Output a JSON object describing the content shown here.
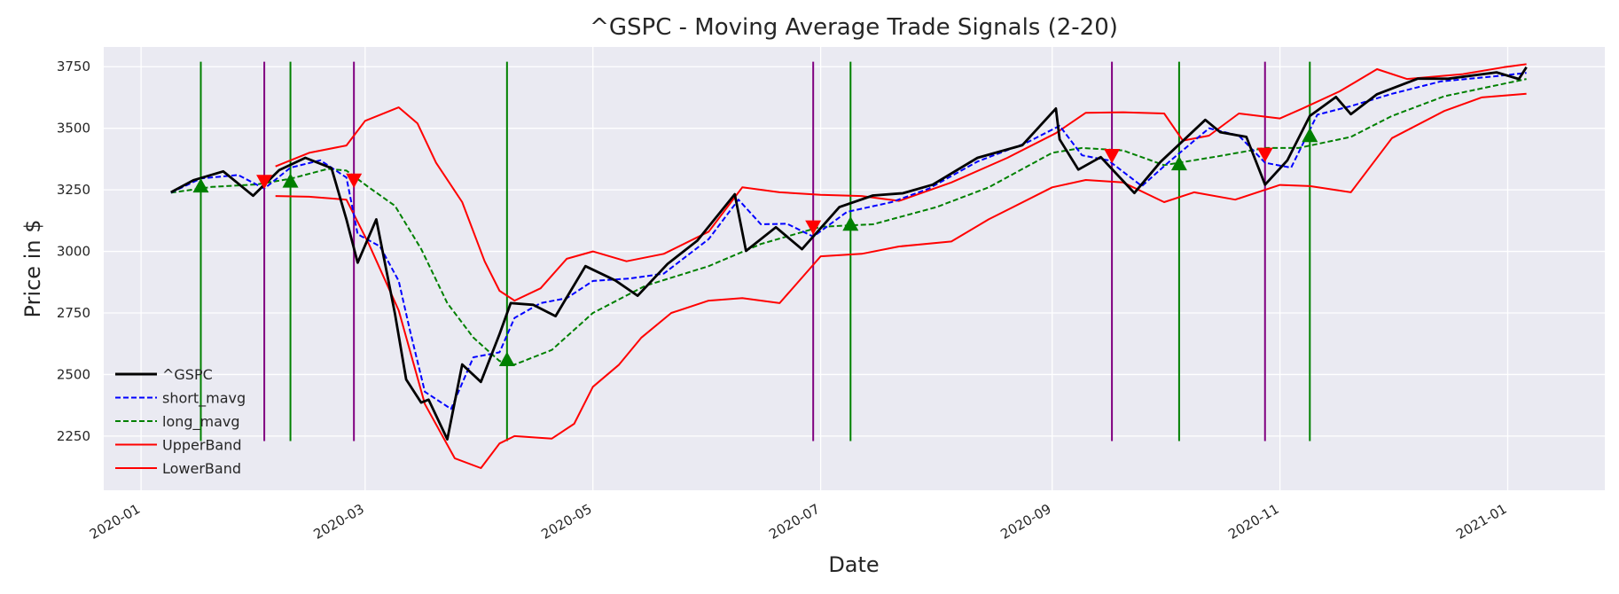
{
  "chart_data": {
    "type": "line",
    "title": "^GSPC - Moving Average Trade Signals (2-20)",
    "xlabel": "Date",
    "ylabel": "Price in $",
    "xlim": [
      "2019-12-22",
      "2021-01-27"
    ],
    "ylim": [
      2030,
      3830
    ],
    "x_ticks": [
      "2020-01-01",
      "2020-03-01",
      "2020-05-01",
      "2020-07-01",
      "2020-09-01",
      "2020-11-01",
      "2021-01-01"
    ],
    "x_tick_labels": [
      "2020-01",
      "2020-03",
      "2020-05",
      "2020-07",
      "2020-09",
      "2020-11",
      "2021-01"
    ],
    "y_ticks": [
      2250,
      2500,
      2750,
      3000,
      3250,
      3500,
      3750
    ],
    "y_tick_labels": [
      "2250",
      "2500",
      "2750",
      "3000",
      "3250",
      "3500",
      "3750"
    ],
    "grid": true,
    "legend_position": "lower-left",
    "series": [
      {
        "name": "^GSPC",
        "color": "#000000",
        "style": "solid",
        "points": [
          [
            "2020-01-09",
            3240
          ],
          [
            "2020-01-15",
            3289
          ],
          [
            "2020-01-23",
            3325
          ],
          [
            "2020-01-31",
            3226
          ],
          [
            "2020-02-07",
            3330
          ],
          [
            "2020-02-14",
            3380
          ],
          [
            "2020-02-21",
            3338
          ],
          [
            "2020-02-25",
            3130
          ],
          [
            "2020-02-28",
            2954
          ],
          [
            "2020-03-04",
            3130
          ],
          [
            "2020-03-09",
            2746
          ],
          [
            "2020-03-12",
            2480
          ],
          [
            "2020-03-16",
            2386
          ],
          [
            "2020-03-18",
            2398
          ],
          [
            "2020-03-23",
            2237
          ],
          [
            "2020-03-27",
            2541
          ],
          [
            "2020-04-01",
            2470
          ],
          [
            "2020-04-06",
            2664
          ],
          [
            "2020-04-09",
            2790
          ],
          [
            "2020-04-15",
            2783
          ],
          [
            "2020-04-21",
            2737
          ],
          [
            "2020-04-29",
            2940
          ],
          [
            "2020-05-07",
            2882
          ],
          [
            "2020-05-13",
            2820
          ],
          [
            "2020-05-21",
            2949
          ],
          [
            "2020-05-29",
            3044
          ],
          [
            "2020-06-08",
            3232
          ],
          [
            "2020-06-11",
            3002
          ],
          [
            "2020-06-19",
            3098
          ],
          [
            "2020-06-26",
            3009
          ],
          [
            "2020-07-06",
            3180
          ],
          [
            "2020-07-15",
            3227
          ],
          [
            "2020-07-23",
            3236
          ],
          [
            "2020-07-31",
            3271
          ],
          [
            "2020-08-12",
            3380
          ],
          [
            "2020-08-24",
            3431
          ],
          [
            "2020-09-02",
            3580
          ],
          [
            "2020-09-03",
            3455
          ],
          [
            "2020-09-08",
            3332
          ],
          [
            "2020-09-14",
            3383
          ],
          [
            "2020-09-23",
            3237
          ],
          [
            "2020-09-30",
            3363
          ],
          [
            "2020-10-12",
            3534
          ],
          [
            "2020-10-16",
            3484
          ],
          [
            "2020-10-23",
            3465
          ],
          [
            "2020-10-28",
            3271
          ],
          [
            "2020-11-03",
            3370
          ],
          [
            "2020-11-09",
            3550
          ],
          [
            "2020-11-16",
            3627
          ],
          [
            "2020-11-20",
            3557
          ],
          [
            "2020-11-27",
            3638
          ],
          [
            "2020-12-08",
            3702
          ],
          [
            "2020-12-16",
            3701
          ],
          [
            "2020-12-29",
            3727
          ],
          [
            "2021-01-04",
            3700
          ],
          [
            "2021-01-06",
            3748
          ]
        ]
      },
      {
        "name": "short_mavg",
        "color": "#0000ff",
        "style": "dashed",
        "points": [
          [
            "2020-01-09",
            3238
          ],
          [
            "2020-01-17",
            3296
          ],
          [
            "2020-01-27",
            3310
          ],
          [
            "2020-02-03",
            3255
          ],
          [
            "2020-02-10",
            3340
          ],
          [
            "2020-02-18",
            3370
          ],
          [
            "2020-02-25",
            3300
          ],
          [
            "2020-02-28",
            3070
          ],
          [
            "2020-03-05",
            3020
          ],
          [
            "2020-03-10",
            2880
          ],
          [
            "2020-03-13",
            2680
          ],
          [
            "2020-03-17",
            2430
          ],
          [
            "2020-03-24",
            2360
          ],
          [
            "2020-03-30",
            2570
          ],
          [
            "2020-04-06",
            2590
          ],
          [
            "2020-04-10",
            2730
          ],
          [
            "2020-04-17",
            2790
          ],
          [
            "2020-04-24",
            2810
          ],
          [
            "2020-05-01",
            2880
          ],
          [
            "2020-05-11",
            2890
          ],
          [
            "2020-05-20",
            2910
          ],
          [
            "2020-06-01",
            3050
          ],
          [
            "2020-06-09",
            3210
          ],
          [
            "2020-06-15",
            3110
          ],
          [
            "2020-06-22",
            3112
          ],
          [
            "2020-06-29",
            3060
          ],
          [
            "2020-07-08",
            3160
          ],
          [
            "2020-07-20",
            3200
          ],
          [
            "2020-07-30",
            3255
          ],
          [
            "2020-08-12",
            3365
          ],
          [
            "2020-08-25",
            3440
          ],
          [
            "2020-09-03",
            3510
          ],
          [
            "2020-09-09",
            3390
          ],
          [
            "2020-09-16",
            3370
          ],
          [
            "2020-09-25",
            3265
          ],
          [
            "2020-10-02",
            3360
          ],
          [
            "2020-10-13",
            3500
          ],
          [
            "2020-10-21",
            3470
          ],
          [
            "2020-10-28",
            3360
          ],
          [
            "2020-11-04",
            3340
          ],
          [
            "2020-11-11",
            3555
          ],
          [
            "2020-11-20",
            3590
          ],
          [
            "2020-12-01",
            3640
          ],
          [
            "2020-12-14",
            3690
          ],
          [
            "2020-12-28",
            3710
          ],
          [
            "2021-01-06",
            3725
          ]
        ]
      },
      {
        "name": "long_mavg",
        "color": "#008000",
        "style": "dashed",
        "points": [
          [
            "2020-01-09",
            3238
          ],
          [
            "2020-01-20",
            3262
          ],
          [
            "2020-02-01",
            3272
          ],
          [
            "2020-02-10",
            3295
          ],
          [
            "2020-02-20",
            3335
          ],
          [
            "2020-02-25",
            3328
          ],
          [
            "2020-03-02",
            3260
          ],
          [
            "2020-03-09",
            3185
          ],
          [
            "2020-03-16",
            3010
          ],
          [
            "2020-03-23",
            2790
          ],
          [
            "2020-03-30",
            2650
          ],
          [
            "2020-04-06",
            2555
          ],
          [
            "2020-04-10",
            2540
          ],
          [
            "2020-04-20",
            2600
          ],
          [
            "2020-05-01",
            2750
          ],
          [
            "2020-05-15",
            2860
          ],
          [
            "2020-06-01",
            2940
          ],
          [
            "2020-06-15",
            3030
          ],
          [
            "2020-07-01",
            3100
          ],
          [
            "2020-07-15",
            3110
          ],
          [
            "2020-08-01",
            3180
          ],
          [
            "2020-08-15",
            3260
          ],
          [
            "2020-09-01",
            3400
          ],
          [
            "2020-09-09",
            3420
          ],
          [
            "2020-09-20",
            3410
          ],
          [
            "2020-10-01",
            3350
          ],
          [
            "2020-10-15",
            3385
          ],
          [
            "2020-10-28",
            3420
          ],
          [
            "2020-11-06",
            3420
          ],
          [
            "2020-11-20",
            3465
          ],
          [
            "2020-12-01",
            3550
          ],
          [
            "2020-12-15",
            3630
          ],
          [
            "2021-01-06",
            3700
          ]
        ]
      },
      {
        "name": "UpperBand",
        "color": "#ff0000",
        "style": "solid",
        "points": [
          [
            "2020-02-06",
            3345
          ],
          [
            "2020-02-15",
            3400
          ],
          [
            "2020-02-25",
            3430
          ],
          [
            "2020-03-01",
            3530
          ],
          [
            "2020-03-10",
            3585
          ],
          [
            "2020-03-15",
            3520
          ],
          [
            "2020-03-20",
            3360
          ],
          [
            "2020-03-27",
            3200
          ],
          [
            "2020-04-02",
            2960
          ],
          [
            "2020-04-06",
            2840
          ],
          [
            "2020-04-10",
            2800
          ],
          [
            "2020-04-17",
            2850
          ],
          [
            "2020-04-24",
            2970
          ],
          [
            "2020-05-01",
            3000
          ],
          [
            "2020-05-10",
            2960
          ],
          [
            "2020-05-20",
            2990
          ],
          [
            "2020-06-01",
            3080
          ],
          [
            "2020-06-10",
            3260
          ],
          [
            "2020-06-20",
            3240
          ],
          [
            "2020-07-01",
            3230
          ],
          [
            "2020-07-12",
            3225
          ],
          [
            "2020-07-22",
            3205
          ],
          [
            "2020-08-05",
            3280
          ],
          [
            "2020-08-20",
            3380
          ],
          [
            "2020-09-02",
            3480
          ],
          [
            "2020-09-10",
            3563
          ],
          [
            "2020-09-20",
            3565
          ],
          [
            "2020-10-01",
            3560
          ],
          [
            "2020-10-06",
            3450
          ],
          [
            "2020-10-13",
            3470
          ],
          [
            "2020-10-21",
            3560
          ],
          [
            "2020-11-01",
            3540
          ],
          [
            "2020-11-07",
            3580
          ],
          [
            "2020-11-17",
            3650
          ],
          [
            "2020-11-27",
            3740
          ],
          [
            "2020-12-05",
            3700
          ],
          [
            "2020-12-20",
            3720
          ],
          [
            "2020-12-31",
            3748
          ],
          [
            "2021-01-06",
            3760
          ]
        ]
      },
      {
        "name": "LowerBand",
        "color": "#ff0000",
        "style": "solid",
        "points": [
          [
            "2020-02-06",
            3225
          ],
          [
            "2020-02-15",
            3222
          ],
          [
            "2020-02-25",
            3210
          ],
          [
            "2020-03-02",
            3030
          ],
          [
            "2020-03-10",
            2760
          ],
          [
            "2020-03-17",
            2380
          ],
          [
            "2020-03-25",
            2160
          ],
          [
            "2020-04-01",
            2120
          ],
          [
            "2020-04-06",
            2220
          ],
          [
            "2020-04-10",
            2250
          ],
          [
            "2020-04-20",
            2240
          ],
          [
            "2020-04-26",
            2300
          ],
          [
            "2020-05-01",
            2450
          ],
          [
            "2020-05-08",
            2540
          ],
          [
            "2020-05-14",
            2650
          ],
          [
            "2020-05-22",
            2750
          ],
          [
            "2020-06-01",
            2800
          ],
          [
            "2020-06-10",
            2810
          ],
          [
            "2020-06-20",
            2790
          ],
          [
            "2020-07-01",
            2980
          ],
          [
            "2020-07-12",
            2990
          ],
          [
            "2020-07-22",
            3020
          ],
          [
            "2020-08-05",
            3040
          ],
          [
            "2020-08-15",
            3130
          ],
          [
            "2020-09-01",
            3260
          ],
          [
            "2020-09-10",
            3290
          ],
          [
            "2020-09-20",
            3280
          ],
          [
            "2020-10-01",
            3200
          ],
          [
            "2020-10-09",
            3240
          ],
          [
            "2020-10-20",
            3210
          ],
          [
            "2020-11-01",
            3270
          ],
          [
            "2020-11-09",
            3265
          ],
          [
            "2020-11-20",
            3240
          ],
          [
            "2020-12-01",
            3460
          ],
          [
            "2020-12-15",
            3570
          ],
          [
            "2020-12-25",
            3625
          ],
          [
            "2021-01-06",
            3640
          ]
        ]
      }
    ],
    "buy_signals": {
      "color": "#008000",
      "marker": "triangle-up",
      "points": [
        [
          "2020-01-17",
          3265
        ],
        [
          "2020-02-10",
          3285
        ],
        [
          "2020-04-08",
          2560
        ],
        [
          "2020-07-09",
          3110
        ],
        [
          "2020-10-05",
          3355
        ],
        [
          "2020-11-09",
          3470
        ]
      ]
    },
    "sell_signals": {
      "color": "#ff0000",
      "marker": "triangle-down",
      "points": [
        [
          "2020-02-03",
          3285
        ],
        [
          "2020-02-27",
          3290
        ],
        [
          "2020-06-29",
          3100
        ],
        [
          "2020-09-17",
          3390
        ],
        [
          "2020-10-28",
          3395
        ]
      ]
    },
    "buy_lines": {
      "color": "#008000",
      "dates": [
        "2020-01-17",
        "2020-02-10",
        "2020-04-08",
        "2020-07-09",
        "2020-10-05",
        "2020-11-09"
      ],
      "y_range": [
        2230,
        3770
      ]
    },
    "sell_lines": {
      "color": "#800080",
      "dates": [
        "2020-02-03",
        "2020-02-27",
        "2020-06-29",
        "2020-09-17",
        "2020-10-28"
      ],
      "y_range": [
        2230,
        3770
      ]
    },
    "colors": {
      "plot_background": "#eaeaf2",
      "grid": "#ffffff",
      "text": "#262626"
    }
  }
}
